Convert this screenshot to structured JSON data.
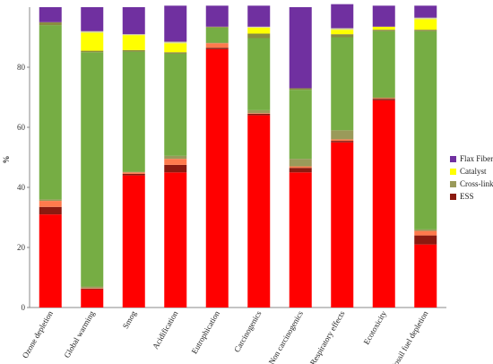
{
  "chart_data": {
    "type": "bar",
    "stacked": true,
    "ylabel": "%",
    "ylim": [
      0,
      100
    ],
    "yticks": [
      0,
      20,
      40,
      60,
      80
    ],
    "grid": false,
    "legend_position": "right",
    "categories": [
      "Ozone depletion",
      "Global warming",
      "Smog",
      "Acidification",
      "Eutrophication",
      "Carcinogenics",
      "Non carcinogenics",
      "Respiratory effects",
      "Ecotoxicity",
      "Fossil fuel depletion"
    ],
    "series": [
      {
        "name": "",
        "color": "#ff0000",
        "values": [
          31,
          6,
          44,
          45,
          86,
          64,
          45,
          55,
          69,
          21
        ]
      },
      {
        "name": "ESS",
        "color": "#8b1a10",
        "values": [
          2.5,
          0.3,
          0.5,
          2.5,
          0.5,
          0.5,
          1.5,
          0.5,
          0.5,
          3
        ]
      },
      {
        "name": "",
        "color": "#ff7a4d",
        "values": [
          2,
          0.2,
          0.5,
          2,
          1.5,
          0.2,
          0.5,
          0.5,
          0.2,
          1.5
        ]
      },
      {
        "name": "Cross-linker",
        "color": "#9a9a5a",
        "values": [
          0.5,
          0.5,
          0.2,
          1,
          0.2,
          1,
          2.5,
          3,
          0.3,
          0.5
        ]
      },
      {
        "name": "",
        "color": "#76ad44",
        "values": [
          58,
          78,
          40,
          34,
          5,
          24,
          23,
          31,
          22,
          66
        ]
      },
      {
        "name": "",
        "color": "#8a8c40",
        "values": [
          1,
          0.5,
          0.5,
          0.5,
          0.3,
          1.5,
          0.5,
          1,
          0.5,
          0.5
        ]
      },
      {
        "name": "Catalyst",
        "color": "#ffff00",
        "values": [
          0,
          6,
          5,
          3,
          0,
          2,
          0,
          1.5,
          1,
          3.5
        ]
      },
      {
        "name": "",
        "color": "#d6d6a0",
        "values": [
          0,
          0.5,
          0.3,
          0.5,
          0,
          0.3,
          0,
          0.5,
          0,
          0.5
        ]
      },
      {
        "name": "Flax Fiber",
        "color": "#7030a0",
        "values": [
          5,
          8,
          9,
          12,
          7,
          7,
          27,
          8,
          7,
          4
        ]
      }
    ]
  },
  "legend": [
    {
      "label": "Flax Fiber",
      "color": "#7030a0"
    },
    {
      "label": "Catalyst",
      "color": "#ffff00"
    },
    {
      "label": "Cross-linker",
      "color": "#9a9a5a"
    },
    {
      "label": "ESS",
      "color": "#8b1a10"
    }
  ]
}
